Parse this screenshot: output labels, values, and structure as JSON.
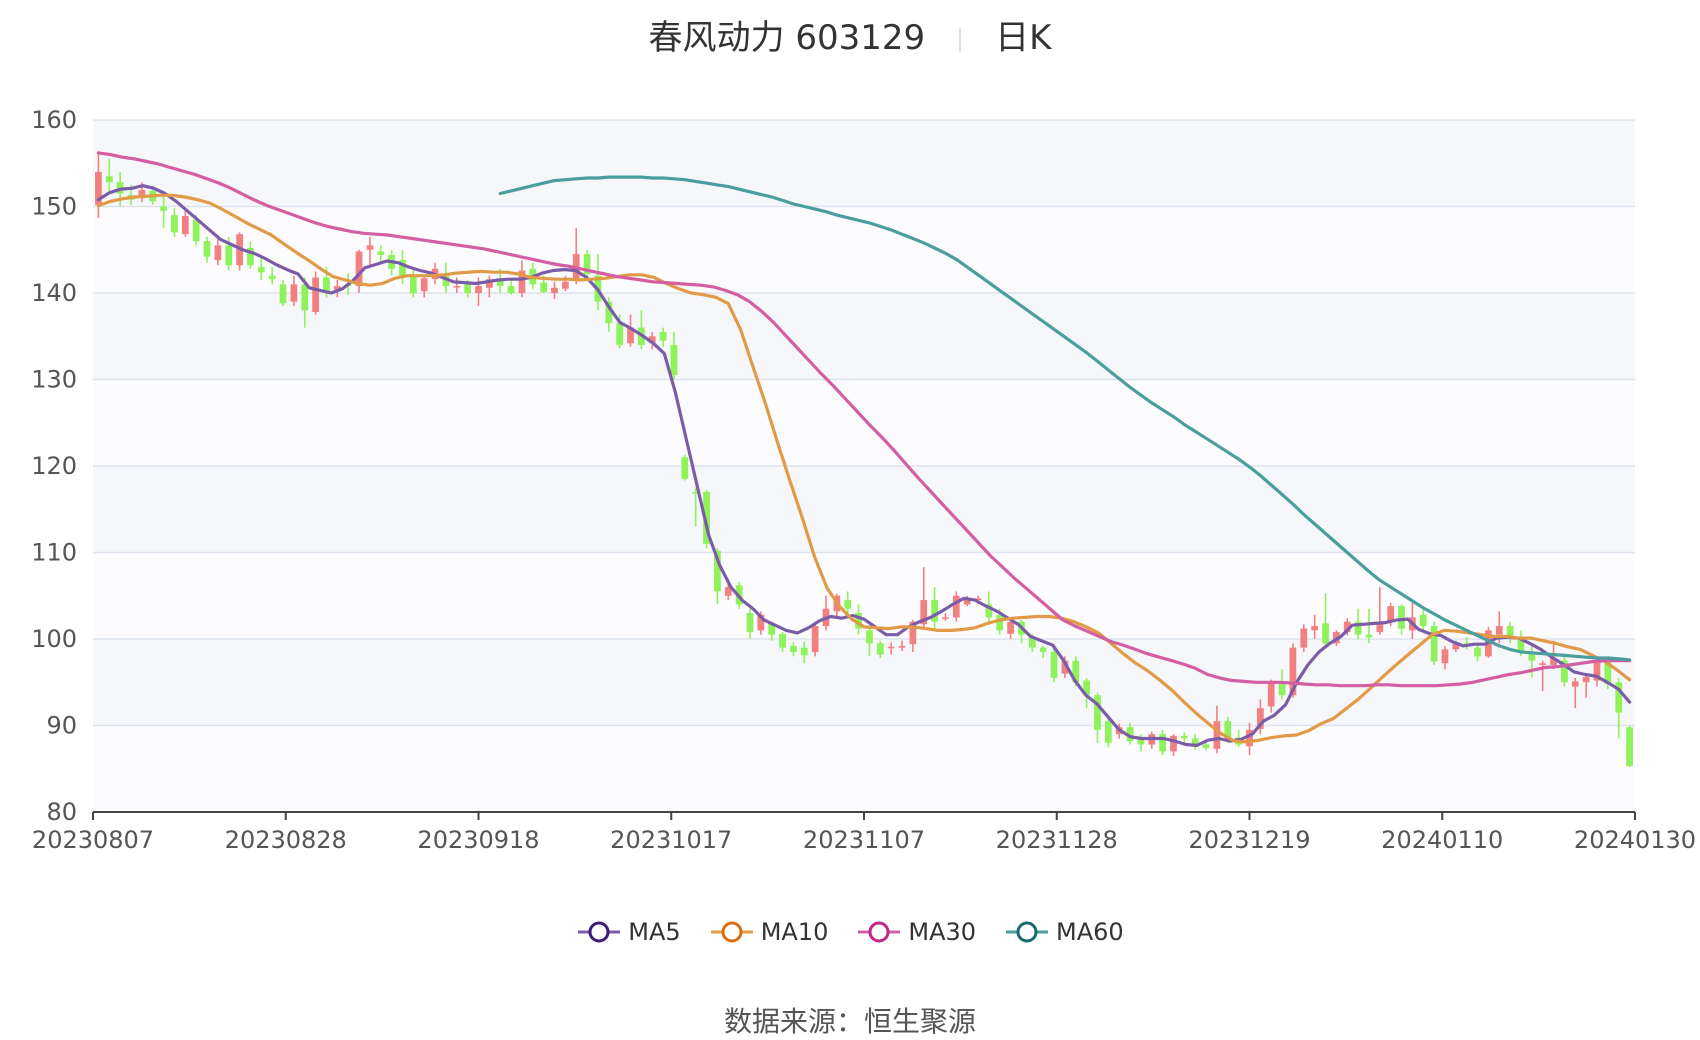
{
  "chart_data": {
    "type": "candlestick",
    "title": "春风动力 603129",
    "period_label": "日K",
    "ylim": [
      80,
      160
    ],
    "y_ticks": [
      80,
      90,
      100,
      110,
      120,
      130,
      140,
      150,
      160
    ],
    "x_tick_labels": [
      "20230807",
      "20230828",
      "20230918",
      "20231017",
      "20231107",
      "20231128",
      "20231219",
      "20240110",
      "20240130"
    ],
    "up_color": "#f28080",
    "down_color": "#8ef25a",
    "candles": [
      [
        150.2,
        154.0,
        148.7,
        156.0
      ],
      [
        153.5,
        152.8,
        151.5,
        155.5
      ],
      [
        152.8,
        151.5,
        150.0,
        154.0
      ],
      [
        151.3,
        150.8,
        150.2,
        152.5
      ],
      [
        151.2,
        151.9,
        150.5,
        152.8
      ],
      [
        151.8,
        150.6,
        150.2,
        152.4
      ],
      [
        150.0,
        149.5,
        147.5,
        151.5
      ],
      [
        149.0,
        147.0,
        146.5,
        149.8
      ],
      [
        146.8,
        148.9,
        146.5,
        149.8
      ],
      [
        148.5,
        146.0,
        145.5,
        149.0
      ],
      [
        146.0,
        144.2,
        143.5,
        146.5
      ],
      [
        143.8,
        145.5,
        143.2,
        146.2
      ],
      [
        145.5,
        143.2,
        142.6,
        146.5
      ],
      [
        143.2,
        146.8,
        142.6,
        147.0
      ],
      [
        145.2,
        143.2,
        142.8,
        146.0
      ],
      [
        143.0,
        142.4,
        141.5,
        144.0
      ],
      [
        142.0,
        141.6,
        141.0,
        143.0
      ],
      [
        141.0,
        138.8,
        138.5,
        141.5
      ],
      [
        139.0,
        141.0,
        138.5,
        142.0
      ],
      [
        141.0,
        138.0,
        136.0,
        141.8
      ],
      [
        137.8,
        141.8,
        137.5,
        142.5
      ],
      [
        141.8,
        140.2,
        139.5,
        143.0
      ],
      [
        140.4,
        140.8,
        139.5,
        141.5
      ],
      [
        141.0,
        140.8,
        139.8,
        142.3
      ],
      [
        140.8,
        144.8,
        140.0,
        145.0
      ],
      [
        145.0,
        145.5,
        143.0,
        146.5
      ],
      [
        144.8,
        144.4,
        143.5,
        145.5
      ],
      [
        144.4,
        142.8,
        142.0,
        145.0
      ],
      [
        143.8,
        141.8,
        141.0,
        145.0
      ],
      [
        142.0,
        140.0,
        139.5,
        143.0
      ],
      [
        140.2,
        141.7,
        139.5,
        142.0
      ],
      [
        141.6,
        142.8,
        141.0,
        143.5
      ],
      [
        142.2,
        140.8,
        140.0,
        143.5
      ],
      [
        140.8,
        140.8,
        140.0,
        141.8
      ],
      [
        141.0,
        140.0,
        139.5,
        141.5
      ],
      [
        140.0,
        140.8,
        138.5,
        141.8
      ],
      [
        140.6,
        141.6,
        139.5,
        142.0
      ],
      [
        141.5,
        140.8,
        140.0,
        142.8
      ],
      [
        140.8,
        140.0,
        139.8,
        141.5
      ],
      [
        140.0,
        142.6,
        139.5,
        143.8
      ],
      [
        142.8,
        141.0,
        140.5,
        143.5
      ],
      [
        141.2,
        140.1,
        140.0,
        142.0
      ],
      [
        140.0,
        140.6,
        139.3,
        141.3
      ],
      [
        140.5,
        141.3,
        140.2,
        142.0
      ],
      [
        141.5,
        144.5,
        141.0,
        147.5
      ],
      [
        144.5,
        142.2,
        141.5,
        145.0
      ],
      [
        142.0,
        139.0,
        138.0,
        144.5
      ],
      [
        139.0,
        136.5,
        135.5,
        139.5
      ],
      [
        136.5,
        134.0,
        133.6,
        137.5
      ],
      [
        134.2,
        136.0,
        133.8,
        137.5
      ],
      [
        136.0,
        134.0,
        133.5,
        138.0
      ],
      [
        134.2,
        135.0,
        133.5,
        135.5
      ],
      [
        135.5,
        134.5,
        133.8,
        136.0
      ],
      [
        134.0,
        130.5,
        130.0,
        135.5
      ],
      [
        121.0,
        118.5,
        118.3,
        121.3
      ],
      [
        117.0,
        116.8,
        113.0,
        117.5
      ],
      [
        117.0,
        111.0,
        110.5,
        117.2
      ],
      [
        110.2,
        105.5,
        104.0,
        110.5
      ],
      [
        105.0,
        106.0,
        104.5,
        107.0
      ],
      [
        106.2,
        104.0,
        103.5,
        106.6
      ],
      [
        103.0,
        100.8,
        100.0,
        103.5
      ],
      [
        101.0,
        102.8,
        100.5,
        103.2
      ],
      [
        101.8,
        100.5,
        99.8,
        102.0
      ],
      [
        100.6,
        99.0,
        98.5,
        100.8
      ],
      [
        99.2,
        98.5,
        98.0,
        99.6
      ],
      [
        99.0,
        98.1,
        97.2,
        99.7
      ],
      [
        98.5,
        101.5,
        98.0,
        102.0
      ],
      [
        101.5,
        103.5,
        101.0,
        105.0
      ],
      [
        103.2,
        105.0,
        102.5,
        105.2
      ],
      [
        104.5,
        103.5,
        102.8,
        105.5
      ],
      [
        103.0,
        101.2,
        100.5,
        104.0
      ],
      [
        101.0,
        99.5,
        98.0,
        101.5
      ],
      [
        99.5,
        98.2,
        97.8,
        99.8
      ],
      [
        99.0,
        99.1,
        98.2,
        99.6
      ],
      [
        99.0,
        99.2,
        98.6,
        99.8
      ],
      [
        99.4,
        102.0,
        98.5,
        102.2
      ],
      [
        101.7,
        104.5,
        101.3,
        108.3
      ],
      [
        104.5,
        102.0,
        101.0,
        106.0
      ],
      [
        102.4,
        102.5,
        102.1,
        103.0
      ],
      [
        102.5,
        105.0,
        102.0,
        105.5
      ],
      [
        104.0,
        104.6,
        103.8,
        105.0
      ],
      [
        104.5,
        104.7,
        104.0,
        105.0
      ],
      [
        104.0,
        102.5,
        101.8,
        105.5
      ],
      [
        102.8,
        101.0,
        100.5,
        103.5
      ],
      [
        100.6,
        102.0,
        100.0,
        102.5
      ],
      [
        102.0,
        100.5,
        99.5,
        102.2
      ],
      [
        100.2,
        99.0,
        98.5,
        100.6
      ],
      [
        99.0,
        98.5,
        97.8,
        99.2
      ],
      [
        98.5,
        95.5,
        95.0,
        99.0
      ],
      [
        96.0,
        97.5,
        95.5,
        98.0
      ],
      [
        97.5,
        95.0,
        94.5,
        98.0
      ],
      [
        95.2,
        93.5,
        92.0,
        95.5
      ],
      [
        93.5,
        89.5,
        88.0,
        93.8
      ],
      [
        90.5,
        88.0,
        87.5,
        91.0
      ],
      [
        89.0,
        89.8,
        88.5,
        90.2
      ],
      [
        89.8,
        88.2,
        87.8,
        90.3
      ],
      [
        88.5,
        87.8,
        87.0,
        89.0
      ],
      [
        87.8,
        89.0,
        87.3,
        89.3
      ],
      [
        89.0,
        87.0,
        86.6,
        89.5
      ],
      [
        87.0,
        88.8,
        86.5,
        89.0
      ],
      [
        88.8,
        88.5,
        88.0,
        89.2
      ],
      [
        88.5,
        87.5,
        87.2,
        89.0
      ],
      [
        87.8,
        87.4,
        87.1,
        88.2
      ],
      [
        87.3,
        90.5,
        86.8,
        92.3
      ],
      [
        90.5,
        88.5,
        88.0,
        91.0
      ],
      [
        88.6,
        87.8,
        87.5,
        89.5
      ],
      [
        87.6,
        89.5,
        86.6,
        90.3
      ],
      [
        89.6,
        92.0,
        89.0,
        93.0
      ],
      [
        92.2,
        95.0,
        91.5,
        95.3
      ],
      [
        94.8,
        93.5,
        93.0,
        96.5
      ],
      [
        93.5,
        99.0,
        93.2,
        99.5
      ],
      [
        99.0,
        101.2,
        98.5,
        101.7
      ],
      [
        101.0,
        101.5,
        100.0,
        102.8
      ],
      [
        101.8,
        99.5,
        99.3,
        105.3
      ],
      [
        99.5,
        100.8,
        99.2,
        101.0
      ],
      [
        100.8,
        102.0,
        100.4,
        102.4
      ],
      [
        102.0,
        100.5,
        100.0,
        103.5
      ],
      [
        100.5,
        100.2,
        99.5,
        103.5
      ],
      [
        100.8,
        102.0,
        100.5,
        106.0
      ],
      [
        102.0,
        103.8,
        101.5,
        104.2
      ],
      [
        103.8,
        101.2,
        100.5,
        104.0
      ],
      [
        101.0,
        102.5,
        100.0,
        104.2
      ],
      [
        102.8,
        101.5,
        101.0,
        103.8
      ],
      [
        101.5,
        97.4,
        97.0,
        102.0
      ],
      [
        97.2,
        98.8,
        96.5,
        99.2
      ],
      [
        98.8,
        99.4,
        98.5,
        99.8
      ],
      [
        99.5,
        99.2,
        98.8,
        100.2
      ],
      [
        99.0,
        98.0,
        97.4,
        99.4
      ],
      [
        98.0,
        101.0,
        97.8,
        101.4
      ],
      [
        100.5,
        101.5,
        99.5,
        103.2
      ],
      [
        101.5,
        100.0,
        99.5,
        102.0
      ],
      [
        100.0,
        98.5,
        98.0,
        101.0
      ],
      [
        98.5,
        97.5,
        95.5,
        99.5
      ],
      [
        97.0,
        97.2,
        94.0,
        97.5
      ],
      [
        97.0,
        97.8,
        96.5,
        99.8
      ],
      [
        97.5,
        95.0,
        94.5,
        98.0
      ],
      [
        94.5,
        95.1,
        92.0,
        95.5
      ],
      [
        95.0,
        95.6,
        93.2,
        96.0
      ],
      [
        95.2,
        97.3,
        94.5,
        97.6
      ],
      [
        97.5,
        94.8,
        94.2,
        97.8
      ],
      [
        95.0,
        91.5,
        88.5,
        95.5
      ],
      [
        89.8,
        85.3,
        85.2,
        90.0
      ]
    ],
    "series": [
      {
        "name": "MA5",
        "color": "#7b5ca8",
        "values": [
          150.8,
          151.6,
          152.0,
          152.1,
          152.4,
          152.1,
          151.5,
          150.6,
          149.5,
          148.4,
          147.3,
          146.2,
          145.6,
          145.0,
          144.6,
          144.0,
          143.3,
          142.7,
          142.2,
          140.6,
          140.3,
          140.0,
          140.5,
          141.5,
          142.9,
          143.3,
          143.7,
          143.5,
          143.0,
          142.6,
          142.3,
          141.8,
          141.3,
          141.2,
          141.1,
          141.3,
          141.5,
          141.6,
          141.6,
          141.8,
          142.3,
          142.6,
          142.7,
          142.6,
          141.8,
          140.4,
          138.4,
          136.6,
          135.9,
          135.1,
          134.2,
          133.0,
          128.5,
          123.0,
          117.5,
          112.0,
          108.5,
          106.0,
          104.5,
          103.5,
          102.2,
          101.6,
          101.0,
          100.7,
          101.3,
          102.1,
          102.6,
          102.4,
          102.7,
          102.3,
          101.4,
          100.5,
          100.5,
          101.4,
          102.0,
          102.5,
          103.2,
          104.0,
          104.7,
          104.5,
          103.8,
          103.2,
          102.4,
          101.6,
          100.3,
          99.8,
          99.3,
          97.5,
          95.2,
          93.5,
          92.5,
          91.0,
          89.5,
          88.7,
          88.5,
          88.5,
          88.5,
          88.2,
          87.8,
          87.7,
          88.3,
          88.5,
          88.2,
          88.4,
          89.0,
          90.5,
          91.2,
          92.4,
          95.0,
          97.0,
          98.5,
          99.5,
          100.3,
          101.6,
          101.7,
          101.8,
          101.9,
          102.2,
          102.3,
          101.1,
          100.6,
          100.4,
          99.7,
          99.2,
          99.4,
          99.4,
          100.1,
          100.2,
          100.1,
          99.5,
          98.8,
          97.9,
          97.1,
          96.2,
          95.9,
          95.7,
          95.0,
          94.2,
          92.7
        ]
      },
      {
        "name": "MA10",
        "color": "#e19a45",
        "values": [
          150.1,
          150.6,
          150.9,
          151.1,
          151.2,
          151.3,
          151.3,
          151.1,
          150.8,
          150.4,
          149.7,
          148.9,
          148.1,
          147.4,
          146.7,
          145.7,
          144.7,
          143.8,
          142.8,
          141.9,
          141.5,
          141.1,
          140.9,
          141.1,
          141.7,
          142.0,
          142.0,
          142.0,
          142.1,
          142.3,
          142.4,
          142.5,
          142.4,
          142.4,
          142.2,
          141.8,
          141.7,
          141.6,
          141.6,
          141.5,
          141.6,
          141.7,
          141.9,
          142.1,
          142.1,
          141.8,
          141.1,
          140.5,
          140.0,
          139.8,
          139.5,
          138.8,
          135.8,
          131.5,
          127.3,
          122.7,
          118.3,
          114.0,
          109.5,
          105.9,
          103.8,
          102.3,
          101.4,
          101.3,
          101.2,
          101.4,
          101.4,
          101.2,
          101.0,
          101.0,
          101.1,
          101.3,
          101.8,
          102.2,
          102.4,
          102.5,
          102.6,
          102.6,
          102.4,
          102.0,
          101.4,
          100.7,
          99.5,
          98.3,
          97.2,
          96.3,
          95.2,
          94.0,
          92.6,
          91.3,
          90.1,
          89.0,
          88.2,
          88.1,
          88.3,
          88.6,
          88.8,
          88.9,
          89.4,
          90.2,
          90.8,
          91.9,
          93.0,
          94.3,
          95.6,
          96.9,
          98.1,
          99.3,
          100.5,
          101.0,
          100.9,
          100.7,
          100.5,
          100.3,
          100.3,
          100.1,
          100.1,
          99.8,
          99.5,
          99.1,
          98.8,
          98.1,
          97.4,
          96.4,
          95.3
        ]
      },
      {
        "name": "MA30",
        "color": "#d35ea2",
        "values": [
          156.2,
          156.0,
          155.7,
          155.5,
          155.2,
          154.9,
          154.5,
          154.1,
          153.7,
          153.2,
          152.7,
          152.1,
          151.4,
          150.7,
          150.1,
          149.6,
          149.1,
          148.6,
          148.1,
          147.7,
          147.4,
          147.1,
          146.9,
          146.8,
          146.7,
          146.5,
          146.3,
          146.1,
          145.9,
          145.7,
          145.5,
          145.3,
          145.1,
          144.8,
          144.5,
          144.2,
          143.9,
          143.6,
          143.3,
          143.1,
          142.8,
          142.5,
          142.2,
          141.9,
          141.7,
          141.5,
          141.3,
          141.2,
          141.1,
          141.0,
          140.9,
          140.7,
          140.3,
          139.8,
          139.0,
          137.9,
          136.6,
          135.1,
          133.6,
          132.1,
          130.6,
          129.2,
          127.7,
          126.2,
          124.7,
          123.3,
          121.8,
          120.2,
          118.6,
          117.1,
          115.6,
          114.1,
          112.6,
          111.1,
          109.6,
          108.3,
          107.0,
          105.8,
          104.6,
          103.4,
          102.2,
          101.5,
          100.9,
          100.3,
          99.7,
          99.3,
          98.8,
          98.3,
          97.9,
          97.5,
          97.1,
          96.6,
          95.9,
          95.5,
          95.2,
          95.1,
          95.0,
          95.0,
          95.0,
          94.9,
          94.8,
          94.7,
          94.7,
          94.6,
          94.6,
          94.6,
          94.7,
          94.7,
          94.6,
          94.6,
          94.6,
          94.6,
          94.7,
          94.8,
          95.0,
          95.3,
          95.6,
          95.9,
          96.1,
          96.4,
          96.7,
          96.8,
          97.0,
          97.2,
          97.4,
          97.5,
          97.5,
          97.5
        ]
      },
      {
        "name": "MA60",
        "color": "#4a9e9e",
        "values": [
          151.5,
          151.8,
          152.1,
          152.4,
          152.7,
          153.0,
          153.1,
          153.2,
          153.3,
          153.3,
          153.4,
          153.4,
          153.4,
          153.4,
          153.3,
          153.3,
          153.2,
          153.1,
          152.9,
          152.7,
          152.5,
          152.3,
          152.0,
          151.7,
          151.4,
          151.1,
          150.7,
          150.3,
          150.0,
          149.7,
          149.4,
          149.0,
          148.7,
          148.4,
          148.1,
          147.7,
          147.3,
          146.8,
          146.3,
          145.8,
          145.2,
          144.6,
          143.9,
          143.0,
          142.1,
          141.2,
          140.3,
          139.4,
          138.5,
          137.6,
          136.7,
          135.8,
          134.9,
          134.0,
          133.1,
          132.1,
          131.1,
          130.1,
          129.1,
          128.2,
          127.3,
          126.5,
          125.7,
          124.8,
          124.0,
          123.2,
          122.4,
          121.6,
          120.8,
          119.9,
          118.9,
          117.8,
          116.7,
          115.6,
          114.4,
          113.3,
          112.2,
          111.1,
          110.0,
          108.9,
          107.8,
          106.8,
          106.0,
          105.2,
          104.4,
          103.6,
          102.9,
          102.2,
          101.6,
          101.0,
          100.4,
          99.8,
          99.2,
          98.8,
          98.5,
          98.4,
          98.3,
          98.2,
          98.1,
          98.0,
          97.9,
          97.8,
          97.8,
          97.7,
          97.6
        ]
      }
    ],
    "ma60_offset": 37,
    "source_label": "数据来源：",
    "source_name": "恒生聚源",
    "legend_position": "bottom"
  }
}
